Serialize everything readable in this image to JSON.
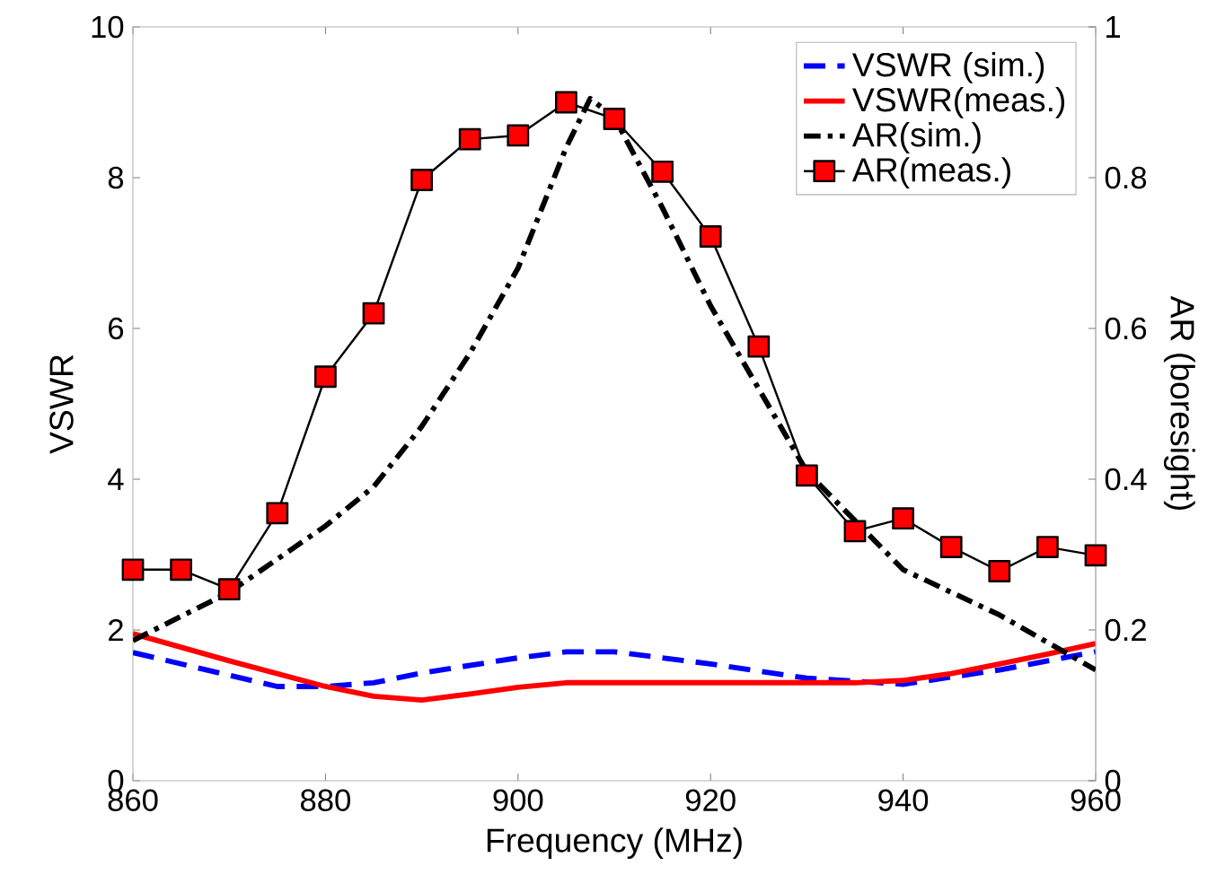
{
  "chart_data": {
    "type": "line",
    "xlabel": "Frequency (MHz)",
    "ylabel": "VSWR",
    "y2label": "AR (boresight)",
    "xlim": [
      860,
      960
    ],
    "xticks": [
      860,
      880,
      900,
      920,
      940,
      960
    ],
    "ylim": [
      0,
      10
    ],
    "yticks": [
      0,
      2,
      4,
      6,
      8,
      10
    ],
    "y2lim": [
      0,
      1
    ],
    "y2ticks": [
      0,
      0.2,
      0.4,
      0.6,
      0.8,
      1
    ],
    "legend": "top right",
    "grid": false,
    "series": [
      {
        "name": "VSWR (sim.)",
        "color": "#0000ff",
        "line_style": "dashed",
        "marker": "none",
        "x": [
          860,
          870,
          875,
          880,
          885,
          890,
          900,
          905,
          910,
          920,
          930,
          940,
          950,
          960
        ],
        "values": [
          1.7,
          1.4,
          1.25,
          1.25,
          1.3,
          1.43,
          1.63,
          1.71,
          1.71,
          1.55,
          1.36,
          1.28,
          1.47,
          1.71
        ]
      },
      {
        "name": "VSWR(meas.)",
        "color": "#ff0000",
        "line_style": "solid",
        "marker": "none",
        "x": [
          860,
          870,
          880,
          885,
          890,
          895,
          900,
          905,
          910,
          920,
          930,
          935,
          940,
          945,
          950,
          955,
          960
        ],
        "values": [
          1.95,
          1.59,
          1.25,
          1.12,
          1.07,
          1.15,
          1.24,
          1.3,
          1.3,
          1.3,
          1.3,
          1.3,
          1.33,
          1.42,
          1.55,
          1.68,
          1.82
        ]
      },
      {
        "name": "AR(sim.)",
        "color": "#000000",
        "line_style": "dashdot",
        "marker": "none",
        "axis": "y2",
        "x": [
          860,
          870,
          880,
          885,
          890,
          895,
          900,
          905,
          907.5,
          910,
          915,
          920,
          925,
          930,
          940,
          950,
          960
        ],
        "values": [
          0.186,
          0.25,
          0.338,
          0.39,
          0.47,
          0.567,
          0.68,
          0.84,
          0.905,
          0.88,
          0.76,
          0.63,
          0.52,
          0.41,
          0.28,
          0.22,
          0.147
        ]
      },
      {
        "name": "AR(meas.)",
        "color": "#000000",
        "line_style": "solid",
        "marker": "square",
        "axis": "y2",
        "x": [
          860,
          865,
          870,
          875,
          880,
          885,
          890,
          895,
          900,
          905,
          910,
          915,
          920,
          925,
          930,
          935,
          940,
          945,
          950,
          955,
          960
        ],
        "values": [
          0.28,
          0.28,
          0.254,
          0.355,
          0.536,
          0.62,
          0.797,
          0.851,
          0.856,
          0.9,
          0.878,
          0.808,
          0.722,
          0.576,
          0.405,
          0.331,
          0.348,
          0.31,
          0.278,
          0.31,
          0.299
        ]
      }
    ]
  }
}
